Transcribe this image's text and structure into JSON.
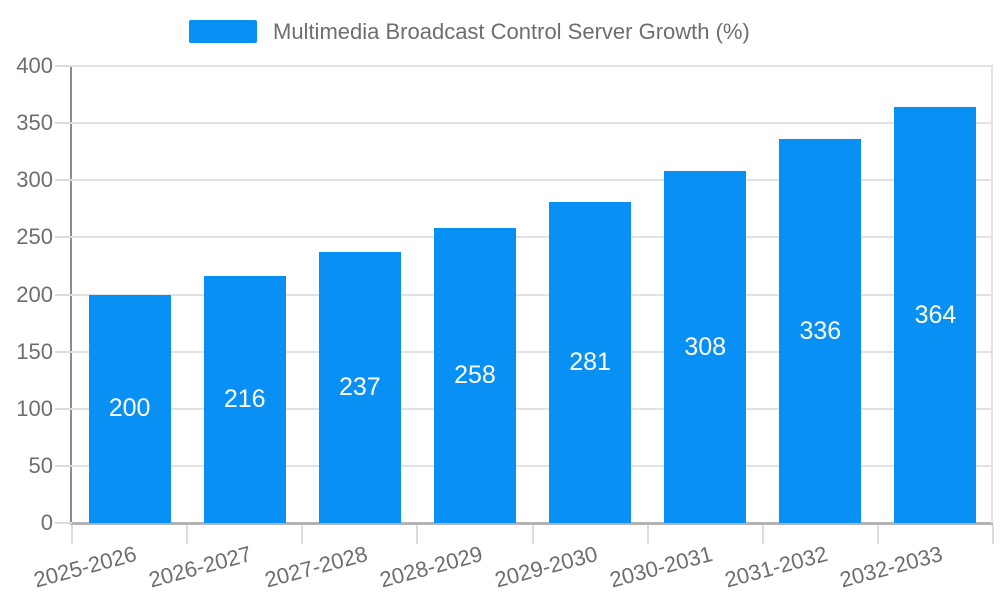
{
  "chart": {
    "colors": {
      "background": "#FFFFFF",
      "bar": "#0990F4",
      "bar_label": "#FFFFFF",
      "axis_line_y": "#8C8C8C",
      "axis_line_x": "#B3B3B3",
      "grid_line": "#E2E2E2",
      "tick_line": "#DCDCDC",
      "tick_text": "#6E6E6E",
      "legend_text": "#6E6E6E"
    },
    "legend": {
      "label": "Multimedia Broadcast Control Server Growth (%)",
      "position": "top-center"
    }
  },
  "chart_data": {
    "type": "bar",
    "title": "Multimedia Broadcast Control Server Growth (%)",
    "categories": [
      "2025-2026",
      "2026-2027",
      "2027-2028",
      "2028-2029",
      "2029-2030",
      "2030-2031",
      "2031-2032",
      "2032-2033"
    ],
    "values": [
      200,
      216,
      237,
      258,
      281,
      308,
      336,
      364
    ],
    "xlabel": "",
    "ylabel": "",
    "ylim": [
      0,
      400
    ],
    "yticks": [
      0,
      50,
      100,
      150,
      200,
      250,
      300,
      350,
      400
    ],
    "grid": true,
    "legend_position": "top-center",
    "value_label_position": "inside-center",
    "x_label_rotation_deg": -15
  }
}
